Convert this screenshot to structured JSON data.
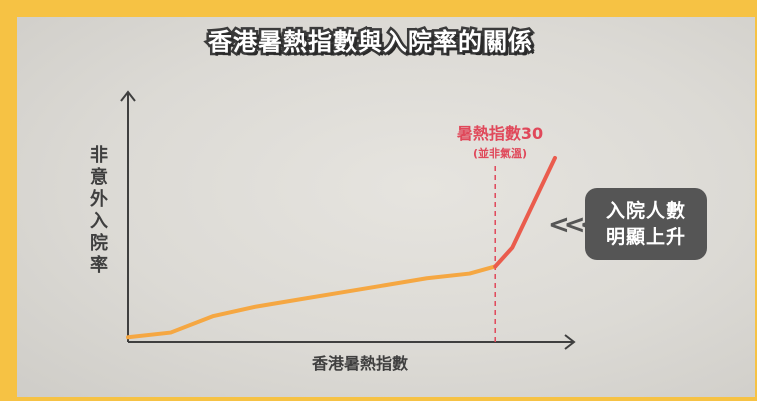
{
  "chart_data": {
    "type": "line",
    "title": "香港暑熱指數與入院率的關係",
    "xlabel": "香港暑熱指數",
    "ylabel": "非意外入院率",
    "x": [
      0,
      10,
      20,
      30,
      40,
      50,
      60,
      70,
      80,
      86,
      90,
      100
    ],
    "series": [
      {
        "values": [
          0.02,
          0.04,
          0.11,
          0.15,
          0.18,
          0.21,
          0.24,
          0.27,
          0.29,
          0.32,
          0.4,
          0.78
        ]
      }
    ],
    "xlim": [
      0,
      100
    ],
    "ylim": [
      0,
      1
    ],
    "threshold": {
      "x": 86,
      "label": "暑熱指數30",
      "sublabel": "(並非氣溫)"
    },
    "callout": {
      "line1": "入院人數",
      "line2": "明顯上升"
    },
    "colors": {
      "line": "#f5a742",
      "line_end": "#ea5c4d",
      "threshold": "#e0485a",
      "axis": "#3f3f3f"
    }
  }
}
